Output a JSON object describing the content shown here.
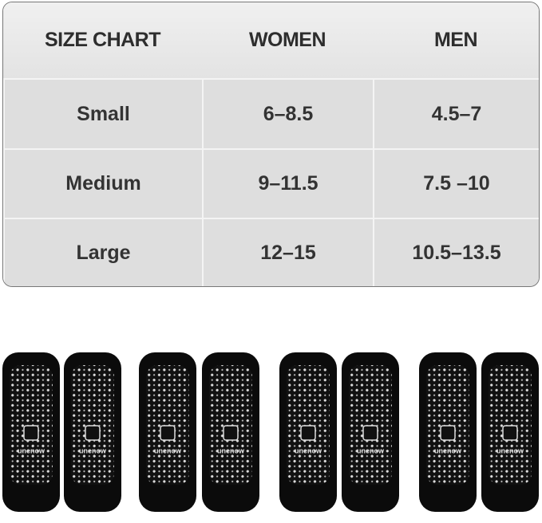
{
  "table": {
    "header": [
      "SIZE CHART",
      "WOMEN",
      "MEN"
    ],
    "rows": [
      [
        "Small",
        "6–8.5",
        "4.5–7"
      ],
      [
        "Medium",
        "9–11.5",
        "7.5 –10"
      ],
      [
        "Large",
        "12–15",
        "10.5–13.5"
      ]
    ]
  },
  "socks": {
    "brand": "unenow"
  }
}
